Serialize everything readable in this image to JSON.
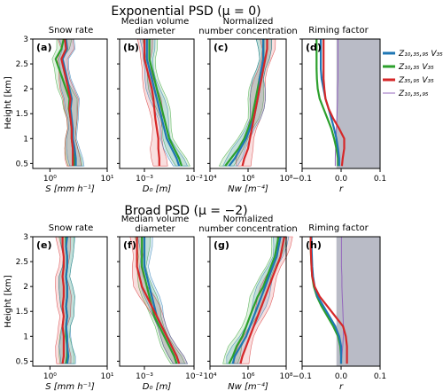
{
  "colors": {
    "blue": "#1f77b4",
    "green": "#2ca02c",
    "red": "#d62728",
    "purple": "#9467bd",
    "shade": "#b9bbc6"
  },
  "legend": [
    {
      "label": "Z₁₀,₃₅,₉₅ V₃₅",
      "color": "#1f77b4"
    },
    {
      "label": "Z₁₀,₃₅ V₃₅",
      "color": "#2ca02c"
    },
    {
      "label": "Z₃₅,₉₅ V₃₅",
      "color": "#d62728"
    },
    {
      "label": "Z₁₀,₃₅,₉₅",
      "color": "#9467bd"
    }
  ],
  "shared": {
    "ylabel": "Height [km]",
    "yticks": [
      "3",
      "2.5",
      "2",
      "1.5",
      "1",
      "0.5"
    ],
    "panel_titles": {
      "a": "Snow rate",
      "b1": "Median volume",
      "b2": "diameter",
      "c1": "Normalized",
      "c2": "number concentration",
      "d": "Riming factor"
    },
    "xlabels": {
      "S": "S [mm h⁻¹]",
      "D": "D₀ [m]",
      "N": "Nw [m⁻⁴]",
      "r": "r"
    },
    "xticks": {
      "S": [
        "10⁰",
        "10¹"
      ],
      "D": [
        "10⁻³",
        "10⁻²"
      ],
      "N": [
        "10⁴",
        "10⁶",
        "10⁸"
      ],
      "r": [
        "−0.1",
        "0.0",
        "0.1"
      ]
    }
  },
  "chart_data": [
    {
      "type": "line",
      "title": "Exponential PSD (μ = 0)",
      "panels": [
        "(a)",
        "(b)",
        "(c)",
        "(d)"
      ],
      "ylim": [
        0.4,
        3.0
      ],
      "heights_km": [
        0.45,
        0.6,
        0.8,
        1.0,
        1.2,
        1.4,
        1.6,
        1.8,
        2.0,
        2.2,
        2.4,
        2.6,
        2.8,
        3.0
      ],
      "snow_rate_log10": {
        "xlim": [
          -0.3,
          1.0
        ],
        "blue": [
          0.45,
          0.45,
          0.43,
          0.4,
          0.4,
          0.38,
          0.36,
          0.38,
          0.34,
          0.3,
          0.26,
          0.22,
          0.3,
          0.28
        ],
        "green": [
          0.42,
          0.42,
          0.4,
          0.38,
          0.38,
          0.36,
          0.33,
          0.34,
          0.28,
          0.22,
          0.16,
          0.1,
          0.2,
          0.24
        ],
        "red": [
          0.4,
          0.4,
          0.4,
          0.38,
          0.38,
          0.36,
          0.34,
          0.36,
          0.32,
          0.28,
          0.24,
          0.2,
          0.28,
          0.26
        ]
      },
      "D0_log10": {
        "xlim": [
          -3.5,
          -2.0
        ],
        "blue": [
          -2.3,
          -2.35,
          -2.45,
          -2.55,
          -2.6,
          -2.65,
          -2.7,
          -2.75,
          -2.8,
          -2.85,
          -2.9,
          -2.95,
          -2.95,
          -2.95
        ],
        "green": [
          -2.25,
          -2.3,
          -2.4,
          -2.5,
          -2.55,
          -2.6,
          -2.65,
          -2.7,
          -2.75,
          -2.8,
          -2.85,
          -2.9,
          -2.9,
          -2.9
        ],
        "red": [
          -2.7,
          -2.7,
          -2.72,
          -2.72,
          -2.75,
          -2.78,
          -2.8,
          -2.82,
          -2.85,
          -2.9,
          -2.95,
          -3.0,
          -3.0,
          -3.0
        ]
      },
      "Nw_log10": {
        "xlim": [
          4,
          8
        ],
        "blue": [
          5.0,
          5.3,
          5.6,
          5.9,
          6.1,
          6.3,
          6.4,
          6.5,
          6.6,
          6.6,
          6.7,
          6.8,
          6.8,
          6.8
        ],
        "green": [
          4.8,
          5.1,
          5.5,
          5.8,
          6.0,
          6.2,
          6.3,
          6.4,
          6.5,
          6.6,
          6.7,
          6.8,
          6.8,
          6.8
        ],
        "red": [
          5.7,
          5.8,
          6.0,
          6.1,
          6.2,
          6.3,
          6.4,
          6.5,
          6.6,
          6.7,
          6.8,
          6.9,
          7.0,
          7.0
        ]
      },
      "riming_r": {
        "xlim": [
          -0.1,
          0.1
        ],
        "blue": [
          -0.005,
          -0.005,
          -0.008,
          -0.012,
          -0.018,
          -0.025,
          -0.032,
          -0.04,
          -0.045,
          -0.05,
          -0.052,
          -0.052,
          -0.052,
          -0.052
        ],
        "green": [
          -0.008,
          -0.008,
          -0.012,
          -0.018,
          -0.025,
          -0.035,
          -0.045,
          -0.055,
          -0.06,
          -0.062,
          -0.063,
          -0.063,
          -0.063,
          -0.063
        ],
        "red": [
          0.002,
          0.004,
          0.008,
          0.008,
          -0.005,
          -0.02,
          -0.032,
          -0.04,
          -0.043,
          -0.045,
          -0.045,
          -0.045,
          -0.045,
          -0.045
        ],
        "purple": [
          -0.015,
          -0.015,
          -0.014,
          -0.013,
          -0.012,
          -0.011,
          -0.01,
          -0.009,
          -0.009,
          -0.008,
          -0.008,
          -0.008,
          -0.008,
          -0.008
        ]
      }
    },
    {
      "type": "line",
      "title": "Broad PSD (μ = −2)",
      "panels": [
        "(e)",
        "(f)",
        "(g)",
        "(h)"
      ],
      "ylim": [
        0.4,
        3.0
      ],
      "heights_km": [
        0.45,
        0.6,
        0.8,
        1.0,
        1.2,
        1.4,
        1.6,
        1.8,
        2.0,
        2.2,
        2.4,
        2.6,
        2.8,
        3.0
      ],
      "snow_rate_log10": {
        "xlim": [
          -0.3,
          1.0
        ],
        "blue": [
          0.3,
          0.32,
          0.3,
          0.3,
          0.28,
          0.3,
          0.28,
          0.3,
          0.3,
          0.28,
          0.3,
          0.3,
          0.28,
          0.3
        ],
        "green": [
          0.28,
          0.3,
          0.3,
          0.28,
          0.28,
          0.3,
          0.28,
          0.3,
          0.3,
          0.28,
          0.3,
          0.3,
          0.28,
          0.28
        ],
        "red": [
          0.22,
          0.24,
          0.24,
          0.24,
          0.22,
          0.24,
          0.22,
          0.24,
          0.24,
          0.22,
          0.24,
          0.24,
          0.22,
          0.22
        ]
      },
      "D0_log10": {
        "xlim": [
          -3.5,
          -2.0
        ],
        "blue": [
          -2.3,
          -2.35,
          -2.45,
          -2.55,
          -2.65,
          -2.75,
          -2.8,
          -2.85,
          -2.9,
          -2.95,
          -3.0,
          -3.0,
          -3.0,
          -3.0
        ],
        "green": [
          -2.35,
          -2.4,
          -2.5,
          -2.6,
          -2.7,
          -2.8,
          -2.85,
          -2.9,
          -2.95,
          -3.0,
          -3.05,
          -3.05,
          -3.05,
          -3.05
        ],
        "red": [
          -2.3,
          -2.35,
          -2.45,
          -2.55,
          -2.65,
          -2.75,
          -2.85,
          -2.95,
          -3.05,
          -3.1,
          -3.15,
          -3.15,
          -3.15,
          -3.15
        ]
      },
      "Nw_log10": {
        "xlim": [
          4,
          8
        ],
        "blue": [
          5.2,
          5.3,
          5.6,
          5.9,
          6.1,
          6.3,
          6.5,
          6.7,
          6.9,
          7.1,
          7.3,
          7.5,
          7.6,
          7.7
        ],
        "green": [
          5.0,
          5.2,
          5.4,
          5.7,
          5.9,
          6.1,
          6.3,
          6.5,
          6.8,
          7.0,
          7.2,
          7.4,
          7.5,
          7.6
        ],
        "red": [
          5.6,
          5.7,
          5.9,
          6.1,
          6.3,
          6.5,
          6.7,
          6.9,
          7.1,
          7.3,
          7.5,
          7.7,
          7.8,
          7.9
        ]
      },
      "riming_r": {
        "xlim": [
          -0.1,
          0.1
        ],
        "blue": [
          0.0,
          0.0,
          0.0,
          -0.005,
          -0.015,
          -0.03,
          -0.045,
          -0.06,
          -0.068,
          -0.072,
          -0.074,
          -0.075,
          -0.076,
          -0.076
        ],
        "green": [
          0.0,
          0.0,
          -0.002,
          -0.008,
          -0.02,
          -0.035,
          -0.05,
          -0.062,
          -0.07,
          -0.074,
          -0.076,
          -0.077,
          -0.078,
          -0.078
        ],
        "red": [
          0.015,
          0.015,
          0.015,
          0.012,
          0.005,
          -0.015,
          -0.035,
          -0.055,
          -0.068,
          -0.074,
          -0.076,
          -0.077,
          -0.078,
          -0.078
        ],
        "purple": [
          0.0,
          0.002,
          0.004,
          0.006,
          0.006,
          0.005,
          0.004,
          0.003,
          0.002,
          0.002,
          0.001,
          0.001,
          0.001,
          0.001
        ]
      }
    }
  ]
}
